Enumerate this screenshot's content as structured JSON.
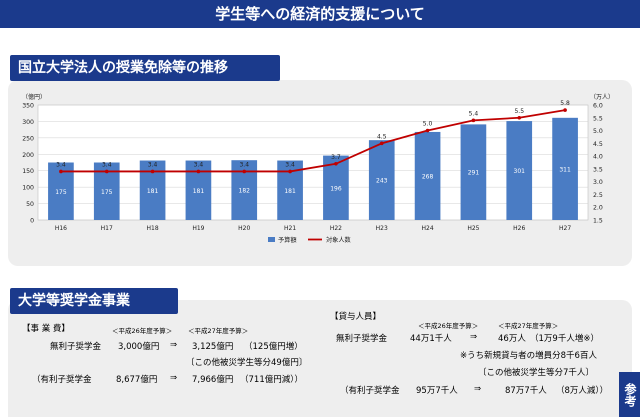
{
  "header": {
    "title": "学生等への経済的支援について"
  },
  "section1": {
    "title": "国立大学法人の授業免除等の推移"
  },
  "section2": {
    "title": "大学等奨学金事業"
  },
  "chart_data": {
    "type": "bar+line",
    "categories": [
      "H16",
      "H17",
      "H18",
      "H19",
      "H20",
      "H21",
      "H22",
      "H23",
      "H24",
      "H25",
      "H26",
      "H27"
    ],
    "series": [
      {
        "name": "予算額",
        "type": "bar",
        "axis": "left",
        "values": [
          175,
          175,
          181,
          181,
          182,
          181,
          196,
          243,
          268,
          291,
          301,
          311
        ],
        "color": "#4a7cc4"
      },
      {
        "name": "対象人数",
        "type": "line",
        "axis": "right",
        "values": [
          3.4,
          3.4,
          3.4,
          3.4,
          3.4,
          3.4,
          3.7,
          4.5,
          5.0,
          5.4,
          5.5,
          5.8
        ],
        "color": "#c00000"
      }
    ],
    "y_left": {
      "label": "（億円）",
      "min": 0,
      "max": 350,
      "ticks": [
        0,
        50,
        100,
        150,
        200,
        250,
        300,
        350
      ]
    },
    "y_right": {
      "label": "（万人）",
      "min": 1.5,
      "max": 6.0,
      "ticks": [
        "1.5",
        "2.0",
        "2.5",
        "3.0",
        "3.5",
        "4.0",
        "4.5",
        "5.0",
        "5.5",
        "6.0"
      ]
    },
    "grid": true,
    "legend": "bottom-center"
  },
  "scholarship": {
    "jigyohi": "【事 業 費】",
    "year_h26": "＜平成26年度予算＞",
    "year_h27": "＜平成27年度予算＞",
    "muri_label": "無利子奨学金",
    "muri_h26": "3,000億円",
    "arrow": "⇒",
    "muri_h27": "3,125億円",
    "muri_change": "（125億円増）",
    "muri_note": "〔この他被災学生等分49億円〕",
    "yuri_label": "（有利子奨学金",
    "yuri_h26": "8,677億円",
    "yuri_h27": "7,966億円",
    "yuri_change": "（711億円減））",
    "taiyo": "【貸与人員】",
    "p_year_h26": "＜平成26年度予算＞",
    "p_year_h27": "＜平成27年度予算＞",
    "p_muri_label": "無利子奨学金",
    "p_muri_h26": "44万1千人",
    "p_muri_h27": "46万人",
    "p_muri_change": "（1万9千人増※）",
    "p_note1": "※うち新規貸与者の増員分8千6百人",
    "p_note2": "〔この他被災学生等分7千人〕",
    "p_yuri_label": "（有利子奨学金",
    "p_yuri_h26": "95万7千人",
    "p_yuri_h27": "87万7千人",
    "p_yuri_change": "（8万人減））",
    "badge": "参考"
  }
}
